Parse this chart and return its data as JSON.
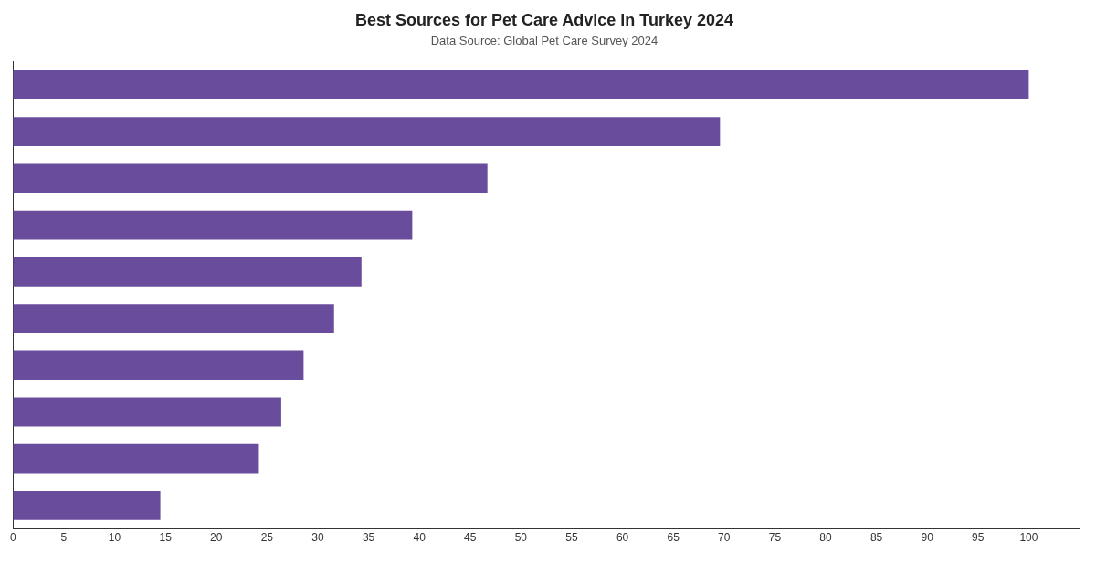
{
  "chart_data": {
    "type": "bar",
    "orientation": "horizontal",
    "title": "Best Sources for Pet Care Advice in Turkey 2024",
    "subtitle": "Data Source: Global Pet Care Survey 2024",
    "categories": [
      null,
      null,
      null,
      null,
      null,
      null,
      null,
      null,
      null,
      null
    ],
    "values": [
      100,
      69.6,
      46.7,
      39.3,
      34.3,
      31.6,
      28.6,
      26.4,
      24.2,
      14.5
    ],
    "color": "#6a4c9c",
    "xlim": [
      0,
      105
    ],
    "xticks": [
      0,
      5,
      10,
      15,
      20,
      25,
      30,
      35,
      40,
      45,
      50,
      55,
      60,
      65,
      70,
      75,
      80,
      85,
      90,
      95,
      100
    ],
    "grid": false,
    "legend": false,
    "tick_labels": "x"
  }
}
